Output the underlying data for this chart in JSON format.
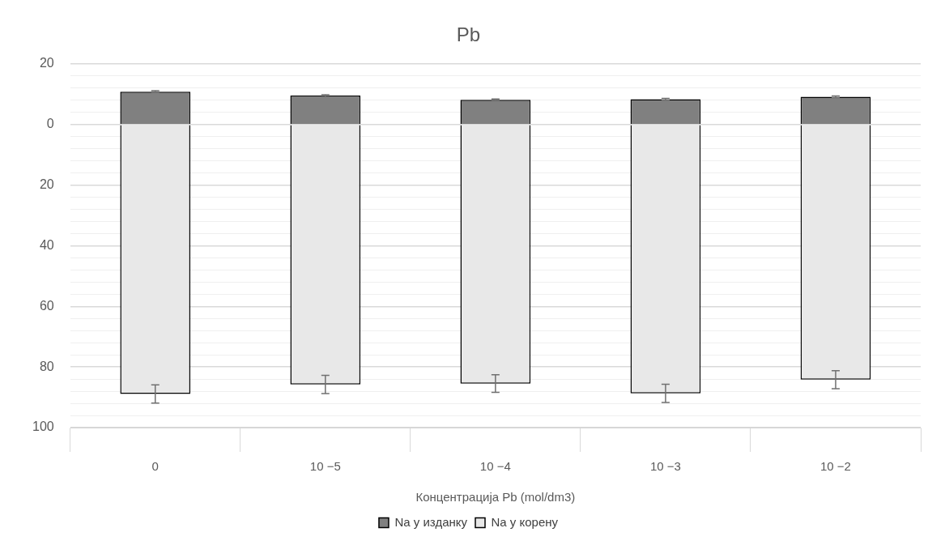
{
  "chart_data": {
    "type": "bar",
    "title": "Pb",
    "xlabel": "Концентрација Pb (mol/dm3)",
    "categories": [
      "0",
      "10 −5",
      "10 −4",
      "10 −3",
      "10 −2"
    ],
    "series": [
      {
        "name": "Na у изданку",
        "color": "#808080",
        "values": [
          10.8,
          9.5,
          8.1,
          8.3,
          9.1
        ],
        "errors": [
          0.3,
          0.3,
          0.3,
          0.3,
          0.3
        ]
      },
      {
        "name": "Na у корену",
        "color": "#e8e8e8",
        "values": [
          -88.9,
          -85.8,
          -85.5,
          -88.7,
          -84.2
        ],
        "errors": [
          3,
          3,
          2.9,
          3,
          3
        ]
      }
    ],
    "stacked": true,
    "ylim": [
      -100,
      20
    ],
    "yticks": [
      {
        "value": -100,
        "label": "100"
      },
      {
        "value": -96,
        "label": null
      },
      {
        "value": -92,
        "label": null
      },
      {
        "value": -88,
        "label": null
      },
      {
        "value": -84,
        "label": null
      },
      {
        "value": -80,
        "label": "80"
      },
      {
        "value": -76,
        "label": null
      },
      {
        "value": -72,
        "label": null
      },
      {
        "value": -68,
        "label": null
      },
      {
        "value": -64,
        "label": null
      },
      {
        "value": -60,
        "label": "60"
      },
      {
        "value": -56,
        "label": null
      },
      {
        "value": -52,
        "label": null
      },
      {
        "value": -48,
        "label": null
      },
      {
        "value": -44,
        "label": null
      },
      {
        "value": -40,
        "label": "40"
      },
      {
        "value": -36,
        "label": null
      },
      {
        "value": -32,
        "label": null
      },
      {
        "value": -28,
        "label": null
      },
      {
        "value": -24,
        "label": null
      },
      {
        "value": -20,
        "label": "20"
      },
      {
        "value": -16,
        "label": null
      },
      {
        "value": -12,
        "label": null
      },
      {
        "value": -8,
        "label": null
      },
      {
        "value": -4,
        "label": null
      },
      0,
      {
        "value": 4,
        "label": null
      },
      {
        "value": 8,
        "label": null
      },
      {
        "value": 12,
        "label": null
      },
      {
        "value": 16,
        "label": null
      },
      20
    ],
    "grid": true,
    "legend": "bottom"
  }
}
